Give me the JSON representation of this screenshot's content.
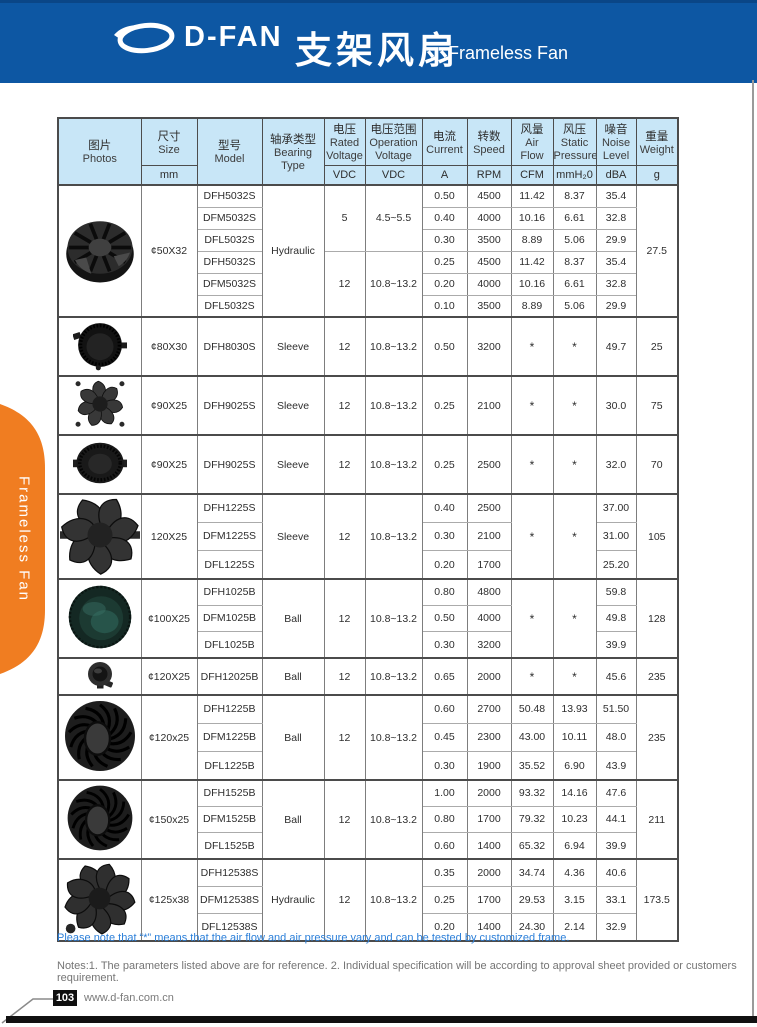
{
  "header": {
    "logo_text": "D-FAN",
    "title_zh": "支架风扇",
    "title_en": "Frameless Fan"
  },
  "side_tab": {
    "label": "Frameless Fan"
  },
  "colors": {
    "band_blue": "#0d57a3",
    "header_light_blue": "#c8e6f7",
    "tab_orange": "#f07d21",
    "note_blue": "#2b7fd9"
  },
  "table": {
    "columns": [
      {
        "zh": "图片",
        "en": "Photos",
        "unit": null
      },
      {
        "zh": "尺寸",
        "en": "Size",
        "unit": "mm"
      },
      {
        "zh": "型号",
        "en": "Model",
        "unit": null
      },
      {
        "zh": "轴承类型",
        "en": "Bearing\nType",
        "unit": null
      },
      {
        "zh": "电压",
        "en": "Rated\nVoltage",
        "unit": "VDC"
      },
      {
        "zh": "电压范围",
        "en": "Operation\nVoltage",
        "unit": "VDC"
      },
      {
        "zh": "电流",
        "en": "Current",
        "unit": "A"
      },
      {
        "zh": "转数",
        "en": "Speed",
        "unit": "RPM"
      },
      {
        "zh": "风量",
        "en": "Air\nFlow",
        "unit": "CFM"
      },
      {
        "zh": "风压",
        "en": "Static\nPressure",
        "unit": "mmH₂0"
      },
      {
        "zh": "噪音",
        "en": "Noise\nLevel",
        "unit": "dBA"
      },
      {
        "zh": "重量",
        "en": "Weight",
        "unit": "g"
      }
    ],
    "groups": [
      {
        "size": "¢50X32",
        "photo": "impeller",
        "bearing": "Hydraulic",
        "weight": "27.5",
        "voltage_blocks": [
          {
            "rated": "5",
            "range": "4.5~5.5",
            "span": 3
          },
          {
            "rated": "12",
            "range": "10.8~13.2",
            "span": 3
          }
        ],
        "air_merged": null,
        "pressure_merged": null,
        "rows": [
          {
            "model": "DFH5032S",
            "current": "0.50",
            "speed": "4500",
            "air": "11.42",
            "pressure": "8.37",
            "noise": "35.4"
          },
          {
            "model": "DFM5032S",
            "current": "0.40",
            "speed": "4000",
            "air": "10.16",
            "pressure": "6.61",
            "noise": "32.8"
          },
          {
            "model": "DFL5032S",
            "current": "0.30",
            "speed": "3500",
            "air": "8.89",
            "pressure": "5.06",
            "noise": "29.9"
          },
          {
            "model": "DFH5032S",
            "current": "0.25",
            "speed": "4500",
            "air": "11.42",
            "pressure": "8.37",
            "noise": "35.4"
          },
          {
            "model": "DFM5032S",
            "current": "0.20",
            "speed": "4000",
            "air": "10.16",
            "pressure": "6.61",
            "noise": "32.8"
          },
          {
            "model": "DFL5032S",
            "current": "0.10",
            "speed": "3500",
            "air": "8.89",
            "pressure": "5.06",
            "noise": "29.9"
          }
        ]
      },
      {
        "size": "¢80X30",
        "photo": "blower",
        "bearing": "Sleeve",
        "weight": "25",
        "voltage_blocks": [
          {
            "rated": "12",
            "range": "10.8~13.2",
            "span": 1
          }
        ],
        "air_merged": "*",
        "pressure_merged": "*",
        "rows": [
          {
            "model": "DFH8030S",
            "current": "0.50",
            "speed": "3200",
            "noise": "49.7"
          }
        ]
      },
      {
        "size": "¢90X25",
        "photo": "axial",
        "bearing": "Sleeve",
        "weight": "75",
        "voltage_blocks": [
          {
            "rated": "12",
            "range": "10.8~13.2",
            "span": 1
          }
        ],
        "air_merged": "*",
        "pressure_merged": "*",
        "rows": [
          {
            "model": "DFH9025S",
            "current": "0.25",
            "speed": "2100",
            "noise": "30.0"
          }
        ]
      },
      {
        "size": "¢90X25",
        "photo": "oval",
        "bearing": "Sleeve",
        "weight": "70",
        "voltage_blocks": [
          {
            "rated": "12",
            "range": "10.8~13.2",
            "span": 1
          }
        ],
        "air_merged": "*",
        "pressure_merged": "*",
        "rows": [
          {
            "model": "DFH9025S",
            "current": "0.25",
            "speed": "2500",
            "noise": "32.0"
          }
        ]
      },
      {
        "size": "120X25",
        "photo": "prop7",
        "bearing": "Sleeve",
        "weight": "105",
        "voltage_blocks": [
          {
            "rated": "12",
            "range": "10.8~13.2",
            "span": 3
          }
        ],
        "air_merged": "*",
        "pressure_merged": "*",
        "rows": [
          {
            "model": "DFH1225S",
            "current": "0.40",
            "speed": "2500",
            "noise": "37.00"
          },
          {
            "model": "DFM1225S",
            "current": "0.30",
            "speed": "2100",
            "noise": "31.00"
          },
          {
            "model": "DFL1225S",
            "current": "0.20",
            "speed": "1700",
            "noise": "25.20"
          }
        ]
      },
      {
        "size": "¢100X25",
        "photo": "lens",
        "bearing": "Ball",
        "weight": "128",
        "voltage_blocks": [
          {
            "rated": "12",
            "range": "10.8~13.2",
            "span": 3
          }
        ],
        "air_merged": "*",
        "pressure_merged": "*",
        "rows": [
          {
            "model": "DFH1025B",
            "current": "0.80",
            "speed": "4800",
            "noise": "59.8"
          },
          {
            "model": "DFM1025B",
            "current": "0.50",
            "speed": "4000",
            "noise": "49.8"
          },
          {
            "model": "DFL1025B",
            "current": "0.30",
            "speed": "3200",
            "noise": "39.9"
          }
        ]
      },
      {
        "size": "¢120X25",
        "photo": "disc",
        "bearing": "Ball",
        "weight": "235",
        "voltage_blocks": [
          {
            "rated": "12",
            "range": "10.8~13.2",
            "span": 1
          }
        ],
        "air_merged": "*",
        "pressure_merged": "*",
        "rows": [
          {
            "model": "DFH12025B",
            "current": "0.65",
            "speed": "2000",
            "noise": "45.6"
          }
        ]
      },
      {
        "size": "¢120x25",
        "photo": "swirl",
        "bearing": "Ball",
        "weight": "235",
        "voltage_blocks": [
          {
            "rated": "12",
            "range": "10.8~13.2",
            "span": 3
          }
        ],
        "air_merged": null,
        "pressure_merged": null,
        "rows": [
          {
            "model": "DFH1225B",
            "current": "0.60",
            "speed": "2700",
            "air": "50.48",
            "pressure": "13.93",
            "noise": "51.50"
          },
          {
            "model": "DFM1225B",
            "current": "0.45",
            "speed": "2300",
            "air": "43.00",
            "pressure": "10.11",
            "noise": "48.0"
          },
          {
            "model": "DFL1225B",
            "current": "0.30",
            "speed": "1900",
            "air": "35.52",
            "pressure": "6.90",
            "noise": "43.9"
          }
        ]
      },
      {
        "size": "¢150x25",
        "photo": "swirl",
        "bearing": "Ball",
        "weight": "211",
        "voltage_blocks": [
          {
            "rated": "12",
            "range": "10.8~13.2",
            "span": 3
          }
        ],
        "air_merged": null,
        "pressure_merged": null,
        "rows": [
          {
            "model": "DFH1525B",
            "current": "1.00",
            "speed": "2000",
            "air": "93.32",
            "pressure": "14.16",
            "noise": "47.6"
          },
          {
            "model": "DFM1525B",
            "current": "0.80",
            "speed": "1700",
            "air": "79.32",
            "pressure": "10.23",
            "noise": "44.1"
          },
          {
            "model": "DFL1525B",
            "current": "0.60",
            "speed": "1400",
            "air": "65.32",
            "pressure": "6.94",
            "noise": "39.9"
          }
        ]
      },
      {
        "size": "¢125x38",
        "photo": "prop9",
        "bearing": "Hydraulic",
        "weight": "173.5",
        "voltage_blocks": [
          {
            "rated": "12",
            "range": "10.8~13.2",
            "span": 3
          }
        ],
        "air_merged": null,
        "pressure_merged": null,
        "rows": [
          {
            "model": "DFH12538S",
            "current": "0.35",
            "speed": "2000",
            "air": "34.74",
            "pressure": "4.36",
            "noise": "40.6"
          },
          {
            "model": "DFM12538S",
            "current": "0.25",
            "speed": "1700",
            "air": "29.53",
            "pressure": "3.15",
            "noise": "33.1"
          },
          {
            "model": "DFL12538S",
            "current": "0.20",
            "speed": "1400",
            "air": "24.30",
            "pressure": "2.14",
            "noise": "32.9"
          }
        ]
      }
    ]
  },
  "footnote": "Please note that  “*”  means that the air flow and air pressure vary and can be tested by customized frame.",
  "notes": "Notes:1. The parameters listed above are for reference.   2. Individual specification will be according to approval sheet provided or customers requirement.",
  "page": {
    "number": "103",
    "website": "www.d-fan.com.cn"
  }
}
